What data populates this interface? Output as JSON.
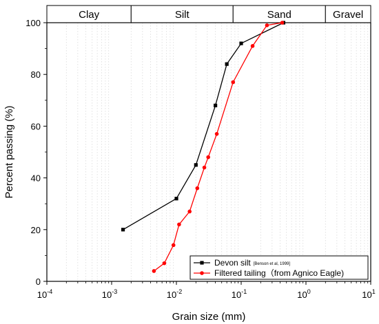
{
  "chart_data": {
    "type": "line",
    "xlabel": "Grain size (mm)",
    "ylabel": "Percent passing (%)",
    "x_scale": "log",
    "xlim": [
      0.0001,
      10
    ],
    "ylim": [
      0,
      100
    ],
    "x_ticks": [
      {
        "value": 0.0001,
        "base": "10",
        "exp": "-4"
      },
      {
        "value": 0.001,
        "base": "10",
        "exp": "-3"
      },
      {
        "value": 0.01,
        "base": "10",
        "exp": "-2"
      },
      {
        "value": 0.1,
        "base": "10",
        "exp": "-1"
      },
      {
        "value": 1,
        "base": "10",
        "exp": "0"
      },
      {
        "value": 10,
        "base": "10",
        "exp": "1"
      }
    ],
    "y_ticks": [
      {
        "value": 0,
        "label": "0"
      },
      {
        "value": 20,
        "label": "20"
      },
      {
        "value": 40,
        "label": "40"
      },
      {
        "value": 60,
        "label": "60"
      },
      {
        "value": 80,
        "label": "80"
      },
      {
        "value": 100,
        "label": "100"
      }
    ],
    "grid": "vertical minor gridlines",
    "soil_classes": [
      {
        "label": "Clay",
        "from": 0.0001,
        "to": 0.002
      },
      {
        "label": "Silt",
        "from": 0.002,
        "to": 0.075
      },
      {
        "label": "Sand",
        "from": 0.075,
        "to": 2
      },
      {
        "label": "Gravel",
        "from": 2,
        "to": 10
      }
    ],
    "legend_position": "bottom-right",
    "series": [
      {
        "name": "Devon silt",
        "note": "[Benson et al, 1999]",
        "color": "#000000",
        "marker": "square",
        "points": [
          [
            0.0015,
            20
          ],
          [
            0.01,
            32
          ],
          [
            0.02,
            45
          ],
          [
            0.04,
            68
          ],
          [
            0.06,
            84
          ],
          [
            0.1,
            92
          ],
          [
            0.45,
            100
          ]
        ]
      },
      {
        "name": "Filtered tailing（from Agnico Eagle)",
        "color": "#ff0000",
        "marker": "circle",
        "points": [
          [
            0.0045,
            4
          ],
          [
            0.0065,
            7
          ],
          [
            0.009,
            14
          ],
          [
            0.011,
            22
          ],
          [
            0.016,
            27
          ],
          [
            0.021,
            36
          ],
          [
            0.027,
            44
          ],
          [
            0.031,
            48
          ],
          [
            0.042,
            57
          ],
          [
            0.075,
            77
          ],
          [
            0.15,
            91
          ],
          [
            0.25,
            99
          ],
          [
            0.43,
            100
          ]
        ]
      }
    ]
  }
}
